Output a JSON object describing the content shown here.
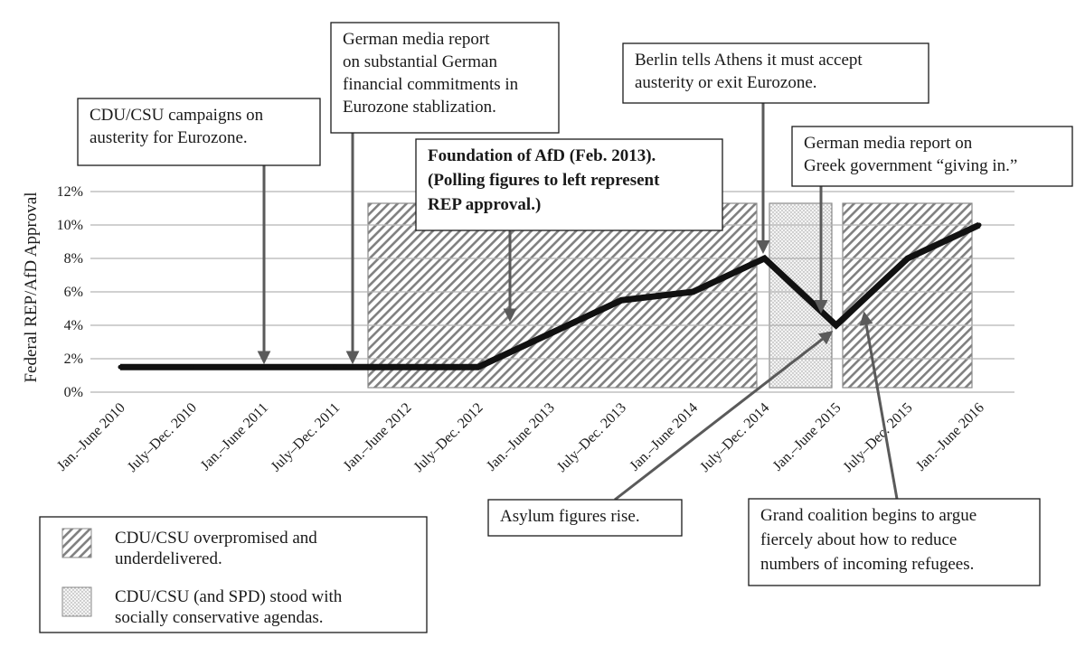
{
  "chart_data": {
    "type": "line",
    "title": "",
    "xlabel": "",
    "ylabel": "Federal REP/AfD Approval",
    "categories": [
      "Jan.–June 2010",
      "July–Dec. 2010",
      "Jan.–June 2011",
      "July–Dec. 2011",
      "Jan.–June 2012",
      "July–Dec. 2012",
      "Jan.–June 2013",
      "July–Dec. 2013",
      "Jan.–June 2014",
      "July–Dec. 2014",
      "Jan.–June 2015",
      "July–Dec. 2015",
      "Jan.–June 2016"
    ],
    "series": [
      {
        "values": [
          1.5,
          1.5,
          1.5,
          1.5,
          1.5,
          1.5,
          3.5,
          5.5,
          6.0,
          8.0,
          4.0,
          8.0,
          10.0
        ]
      }
    ],
    "ylim": [
      0,
      12
    ],
    "yticks": [
      "0%",
      "2%",
      "4%",
      "6%",
      "8%",
      "10%",
      "12%"
    ],
    "grid": true,
    "colors": {
      "line": "#111111",
      "grid": "#b3b3b3",
      "arrow": "#5a5a5a",
      "hatch": "#777777",
      "dots": "#999999"
    },
    "shaded_periods": [
      {
        "pattern": "hatched",
        "from": "Jan.–June 2012",
        "to": "July–Dec. 2014"
      },
      {
        "pattern": "dotted",
        "from": "July–Dec. 2014",
        "to": "Jan.–June 2015"
      },
      {
        "pattern": "hatched",
        "from": "Jan.–June 2015",
        "to": "Jan.–June 2016"
      }
    ],
    "annotations": [
      {
        "lines": [
          "CDU/CSU campaigns on",
          "austerity for Eurozone."
        ],
        "bold": false
      },
      {
        "lines": [
          "German media report",
          "on substantial German",
          "financial commitments in",
          "Eurozone stablization."
        ],
        "bold": false
      },
      {
        "lines": [
          "Foundation of AfD (Feb. 2013).",
          "(Polling figures to left represent",
          "REP approval.)"
        ],
        "bold": true
      },
      {
        "lines": [
          "Berlin tells Athens it must accept",
          "austerity or exit Eurozone."
        ],
        "bold": false
      },
      {
        "lines": [
          "German media report on",
          "Greek government “giving in.”"
        ],
        "bold": false
      },
      {
        "lines": [
          "Asylum figures rise."
        ],
        "bold": false
      },
      {
        "lines": [
          "Grand coalition begins to argue",
          "fiercely about how to reduce",
          "numbers of incoming refugees."
        ],
        "bold": false
      }
    ],
    "legend": [
      {
        "pattern": "hatched",
        "lines": [
          "CDU/CSU overpromised and",
          "underdelivered."
        ]
      },
      {
        "pattern": "dotted",
        "lines": [
          "CDU/CSU (and SPD) stood with",
          "socially conservative agendas."
        ]
      }
    ]
  }
}
